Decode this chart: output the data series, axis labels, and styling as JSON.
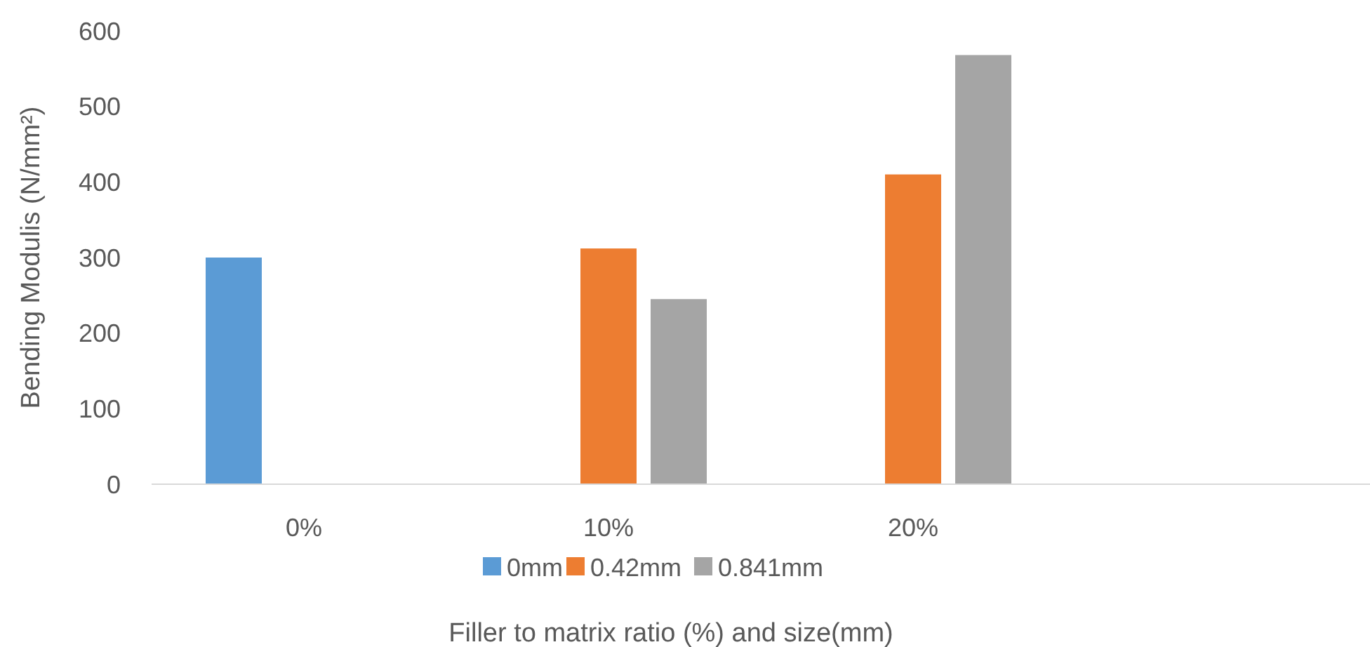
{
  "chart_data": {
    "type": "bar",
    "xlabel": "Filler to matrix ratio (%) and size(mm)",
    "ylabel": "Bending Modulis (N/mm²)",
    "categories": [
      "0%",
      "10%",
      "20%",
      null
    ],
    "series": [
      {
        "name": "0mm",
        "color": "#5b9bd5",
        "values": [
          300,
          null,
          null,
          null
        ]
      },
      {
        "name": "0.42mm",
        "color": "#ed7d31",
        "values": [
          null,
          312,
          410,
          null
        ]
      },
      {
        "name": "0.841mm",
        "color": "#a5a5a5",
        "values": [
          null,
          245,
          568,
          null
        ]
      }
    ],
    "ylim": [
      0,
      600
    ],
    "yticks": [
      0,
      100,
      200,
      300,
      400,
      500,
      600
    ],
    "grid": false,
    "legend": "bottom"
  }
}
